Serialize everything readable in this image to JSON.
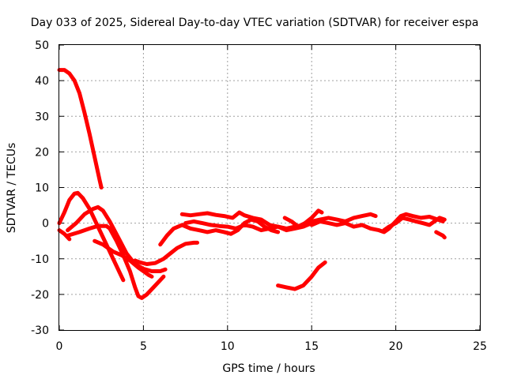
{
  "chart_data": {
    "type": "line",
    "title": "Day 033 of 2025, Sidereal Day-to-day VTEC variation (SDTVAR) for receiver espa",
    "xlabel": "GPS time / hours",
    "ylabel": "SDTVAR / TECUs",
    "xlim": [
      0,
      25
    ],
    "ylim": [
      -30,
      50
    ],
    "xticks": [
      0,
      5,
      10,
      15,
      20,
      25
    ],
    "yticks": [
      -30,
      -20,
      -10,
      0,
      10,
      20,
      30,
      40,
      50
    ],
    "grid": true,
    "color": "#ff0000",
    "series": [
      {
        "name": "track-1",
        "points": [
          [
            0.0,
            43.0
          ],
          [
            0.3,
            43.0
          ],
          [
            0.6,
            42.0
          ],
          [
            0.9,
            40.0
          ],
          [
            1.2,
            36.5
          ],
          [
            1.5,
            31.0
          ],
          [
            1.8,
            25.0
          ],
          [
            2.1,
            18.5
          ],
          [
            2.4,
            12.0
          ],
          [
            2.5,
            10.0
          ]
        ]
      },
      {
        "name": "track-2",
        "points": [
          [
            0.0,
            0.0
          ],
          [
            0.3,
            3.0
          ],
          [
            0.6,
            6.5
          ],
          [
            0.9,
            8.3
          ],
          [
            1.1,
            8.5
          ],
          [
            1.4,
            7.0
          ],
          [
            1.8,
            4.0
          ],
          [
            2.3,
            -1.0
          ],
          [
            2.8,
            -6.0
          ],
          [
            3.2,
            -10.0
          ],
          [
            3.6,
            -14.0
          ],
          [
            3.8,
            -16.0
          ]
        ]
      },
      {
        "name": "track-3",
        "points": [
          [
            0.0,
            -2.0
          ],
          [
            0.3,
            -3.0
          ],
          [
            0.6,
            -4.5
          ]
        ]
      },
      {
        "name": "track-4",
        "points": [
          [
            0.5,
            -2.0
          ],
          [
            1.0,
            0.0
          ],
          [
            1.5,
            2.5
          ],
          [
            2.0,
            4.0
          ],
          [
            2.3,
            4.5
          ],
          [
            2.6,
            3.5
          ],
          [
            3.0,
            0.5
          ],
          [
            3.5,
            -4.0
          ],
          [
            4.0,
            -8.5
          ],
          [
            4.5,
            -11.5
          ],
          [
            5.0,
            -12.8
          ],
          [
            5.5,
            -13.5
          ],
          [
            6.0,
            -13.5
          ],
          [
            6.3,
            -13.0
          ]
        ]
      },
      {
        "name": "track-5",
        "points": [
          [
            0.5,
            -3.5
          ],
          [
            1.2,
            -2.5
          ],
          [
            1.8,
            -1.5
          ],
          [
            2.3,
            -0.8
          ],
          [
            2.8,
            -0.8
          ],
          [
            3.0,
            -1.5
          ],
          [
            3.4,
            -5.0
          ],
          [
            3.8,
            -9.0
          ],
          [
            4.2,
            -13.5
          ],
          [
            4.5,
            -18.0
          ],
          [
            4.7,
            -20.5
          ],
          [
            4.9,
            -21.0
          ],
          [
            5.2,
            -20.0
          ],
          [
            5.6,
            -18.0
          ],
          [
            6.2,
            -15.0
          ]
        ]
      },
      {
        "name": "track-6",
        "points": [
          [
            2.1,
            -5.0
          ],
          [
            2.6,
            -6.0
          ],
          [
            3.2,
            -8.0
          ],
          [
            3.7,
            -9.0
          ],
          [
            4.2,
            -10.5
          ],
          [
            4.7,
            -12.5
          ],
          [
            5.0,
            -13.5
          ],
          [
            5.3,
            -14.5
          ],
          [
            5.5,
            -15.0
          ]
        ]
      },
      {
        "name": "track-7",
        "points": [
          [
            4.5,
            -10.5
          ],
          [
            4.8,
            -11.0
          ],
          [
            5.2,
            -11.5
          ],
          [
            5.7,
            -11.2
          ],
          [
            6.2,
            -10.0
          ],
          [
            6.6,
            -8.5
          ],
          [
            7.0,
            -7.0
          ],
          [
            7.5,
            -5.8
          ],
          [
            8.0,
            -5.5
          ],
          [
            8.2,
            -5.5
          ]
        ]
      },
      {
        "name": "track-8",
        "points": [
          [
            6.0,
            -6.0
          ],
          [
            6.4,
            -3.5
          ],
          [
            6.8,
            -1.5
          ],
          [
            7.3,
            -0.5
          ],
          [
            7.8,
            -1.5
          ],
          [
            8.3,
            -2.0
          ],
          [
            8.8,
            -2.5
          ],
          [
            9.3,
            -2.0
          ],
          [
            9.8,
            -2.5
          ],
          [
            10.2,
            -3.0
          ],
          [
            10.6,
            -2.0
          ],
          [
            11.0,
            0.0
          ],
          [
            11.4,
            1.0
          ],
          [
            11.8,
            0.5
          ],
          [
            12.2,
            -1.0
          ],
          [
            12.6,
            -2.0
          ],
          [
            13.0,
            -2.5
          ]
        ]
      },
      {
        "name": "track-9",
        "points": [
          [
            7.3,
            2.5
          ],
          [
            7.8,
            2.2
          ],
          [
            8.3,
            2.5
          ],
          [
            8.8,
            2.8
          ],
          [
            9.3,
            2.3
          ],
          [
            9.8,
            2.0
          ],
          [
            10.3,
            1.5
          ],
          [
            10.7,
            3.0
          ],
          [
            11.0,
            2.2
          ],
          [
            11.5,
            1.5
          ],
          [
            12.0,
            1.0
          ],
          [
            12.5,
            -0.5
          ],
          [
            13.0,
            -1.0
          ],
          [
            13.5,
            -1.5
          ],
          [
            14.0,
            -1.0
          ],
          [
            14.5,
            -0.5
          ],
          [
            15.0,
            0.5
          ],
          [
            15.5,
            1.0
          ],
          [
            16.0,
            1.5
          ],
          [
            16.5,
            1.0
          ],
          [
            17.0,
            0.5
          ],
          [
            17.5,
            1.5
          ],
          [
            18.0,
            2.0
          ],
          [
            18.5,
            2.5
          ],
          [
            18.8,
            2.0
          ]
        ]
      },
      {
        "name": "track-10",
        "points": [
          [
            7.5,
            0.0
          ],
          [
            8.0,
            0.5
          ],
          [
            8.5,
            0.0
          ],
          [
            9.0,
            -0.5
          ],
          [
            9.5,
            -0.8
          ],
          [
            10.0,
            -1.0
          ],
          [
            10.5,
            -1.5
          ],
          [
            11.0,
            -0.5
          ],
          [
            11.5,
            -1.0
          ],
          [
            12.0,
            -2.0
          ],
          [
            12.5,
            -1.5
          ],
          [
            13.0,
            -1.0
          ],
          [
            13.5,
            -2.0
          ],
          [
            14.0,
            -1.5
          ],
          [
            14.5,
            -1.0
          ],
          [
            15.0,
            0.0
          ],
          [
            15.3,
            0.5
          ]
        ]
      },
      {
        "name": "track-11",
        "points": [
          [
            13.4,
            1.5
          ],
          [
            13.8,
            0.5
          ],
          [
            14.2,
            -1.0
          ],
          [
            14.6,
            0.0
          ],
          [
            15.0,
            1.5
          ],
          [
            15.4,
            3.5
          ],
          [
            15.6,
            3.0
          ]
        ]
      },
      {
        "name": "track-12",
        "points": [
          [
            13.0,
            -17.5
          ],
          [
            13.5,
            -18.0
          ],
          [
            14.0,
            -18.5
          ],
          [
            14.5,
            -17.5
          ],
          [
            15.0,
            -15.0
          ],
          [
            15.4,
            -12.5
          ],
          [
            15.8,
            -11.0
          ]
        ]
      },
      {
        "name": "track-13",
        "points": [
          [
            15.0,
            -0.5
          ],
          [
            15.5,
            0.5
          ],
          [
            16.0,
            0.0
          ],
          [
            16.5,
            -0.5
          ],
          [
            17.0,
            0.0
          ],
          [
            17.5,
            -1.0
          ],
          [
            18.0,
            -0.5
          ],
          [
            18.5,
            -1.5
          ],
          [
            19.0,
            -2.0
          ],
          [
            19.3,
            -2.5
          ],
          [
            19.6,
            -1.5
          ],
          [
            20.0,
            0.5
          ],
          [
            20.3,
            2.0
          ],
          [
            20.6,
            2.5
          ],
          [
            21.0,
            2.0
          ],
          [
            21.5,
            1.5
          ],
          [
            22.0,
            1.8
          ],
          [
            22.5,
            1.0
          ],
          [
            22.8,
            0.5
          ]
        ]
      },
      {
        "name": "track-14",
        "points": [
          [
            19.3,
            -2.0
          ],
          [
            19.6,
            -1.0
          ],
          [
            20.0,
            0.0
          ],
          [
            20.4,
            1.5
          ],
          [
            20.8,
            1.0
          ],
          [
            21.2,
            0.5
          ],
          [
            21.6,
            0.0
          ],
          [
            22.0,
            -0.5
          ],
          [
            22.3,
            0.5
          ],
          [
            22.6,
            1.5
          ],
          [
            22.9,
            1.0
          ]
        ]
      },
      {
        "name": "track-15",
        "points": [
          [
            22.4,
            -2.5
          ],
          [
            22.6,
            -3.0
          ],
          [
            22.8,
            -3.5
          ],
          [
            22.9,
            -4.0
          ]
        ]
      }
    ]
  }
}
